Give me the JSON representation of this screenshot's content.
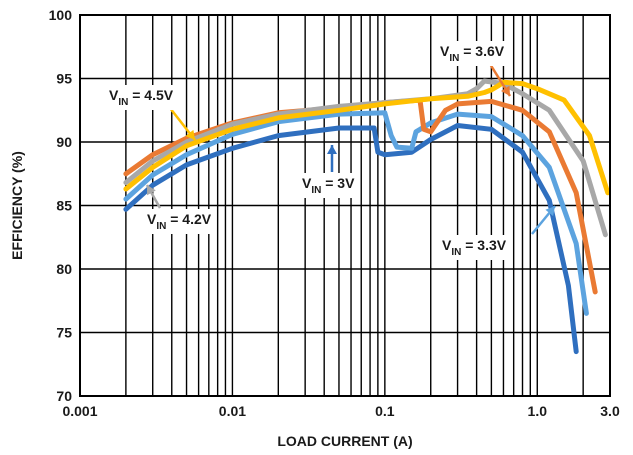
{
  "chart_data": {
    "type": "line",
    "title": "",
    "xlabel": "LOAD CURRENT (A)",
    "ylabel": "EFFICIENCY (%)",
    "x_scale": "log",
    "xlim": [
      0.001,
      3.0
    ],
    "ylim": [
      70,
      100
    ],
    "x_tick_labels": [
      "0.001",
      "0.01",
      "0.1",
      "1.0",
      "3.0"
    ],
    "x_tick_values": [
      0.001,
      0.01,
      0.1,
      1.0,
      3.0
    ],
    "y_tick_labels": [
      "70",
      "75",
      "80",
      "85",
      "90",
      "95",
      "100"
    ],
    "y_tick_values": [
      70,
      75,
      80,
      85,
      90,
      95,
      100
    ],
    "grid": true,
    "legend": "inline labels",
    "series": [
      {
        "label_main": "V",
        "label_sub": "IN",
        "label_rest": " = 3V",
        "color": "#2f6fbf",
        "x": [
          0.002,
          0.003,
          0.005,
          0.01,
          0.02,
          0.05,
          0.085,
          0.09,
          0.1,
          0.15,
          0.2,
          0.3,
          0.5,
          0.8,
          1.2,
          1.6,
          1.8
        ],
        "y": [
          84.7,
          86.6,
          88.2,
          89.5,
          90.5,
          91.1,
          91.1,
          89.2,
          89.0,
          89.2,
          90.2,
          91.3,
          91.0,
          89.2,
          85.4,
          78.7,
          73.5
        ]
      },
      {
        "label_main": "V",
        "label_sub": "IN",
        "label_rest": " = 3.3V",
        "color": "#5ca3df",
        "x": [
          0.002,
          0.003,
          0.005,
          0.01,
          0.02,
          0.05,
          0.1,
          0.11,
          0.12,
          0.15,
          0.16,
          0.2,
          0.3,
          0.5,
          0.8,
          1.2,
          1.8,
          2.1
        ],
        "y": [
          85.5,
          87.4,
          89.0,
          90.6,
          91.6,
          92.2,
          92.3,
          90.5,
          89.6,
          89.5,
          90.8,
          91.5,
          92.2,
          92.0,
          90.5,
          88.0,
          82.0,
          76.5
        ]
      },
      {
        "label_main": "V",
        "label_sub": "IN",
        "label_rest": " = 3.6V",
        "color": "#ea7a33",
        "x": [
          0.002,
          0.003,
          0.005,
          0.01,
          0.02,
          0.05,
          0.1,
          0.17,
          0.18,
          0.2,
          0.25,
          0.3,
          0.5,
          0.8,
          1.2,
          1.8,
          2.4
        ],
        "y": [
          87.5,
          89.0,
          90.3,
          91.5,
          92.3,
          92.7,
          93.1,
          93.3,
          91.0,
          90.8,
          92.5,
          93.0,
          93.2,
          92.5,
          90.8,
          86.0,
          78.2
        ]
      },
      {
        "label_main": "V",
        "label_sub": "IN",
        "label_rest": " = 4.2V",
        "color": "#a8a8a8",
        "x": [
          0.002,
          0.003,
          0.005,
          0.01,
          0.02,
          0.05,
          0.1,
          0.2,
          0.35,
          0.4,
          0.45,
          0.6,
          0.8,
          1.2,
          2.0,
          2.8
        ],
        "y": [
          86.8,
          88.5,
          90.0,
          91.4,
          92.2,
          92.8,
          93.1,
          93.4,
          93.8,
          94.2,
          94.8,
          94.6,
          93.8,
          92.5,
          88.5,
          82.7
        ]
      },
      {
        "label_main": "V",
        "label_sub": "IN",
        "label_rest": " = 4.5V",
        "color": "#ffc000",
        "x": [
          0.002,
          0.003,
          0.005,
          0.01,
          0.02,
          0.05,
          0.1,
          0.2,
          0.35,
          0.45,
          0.5,
          0.55,
          0.6,
          0.8,
          1.0,
          1.5,
          2.2,
          2.9
        ],
        "y": [
          86.3,
          88.0,
          89.7,
          91.0,
          91.9,
          92.5,
          93.0,
          93.4,
          93.6,
          93.9,
          94.1,
          94.4,
          94.7,
          94.6,
          94.2,
          93.3,
          90.5,
          86.0
        ]
      }
    ]
  }
}
